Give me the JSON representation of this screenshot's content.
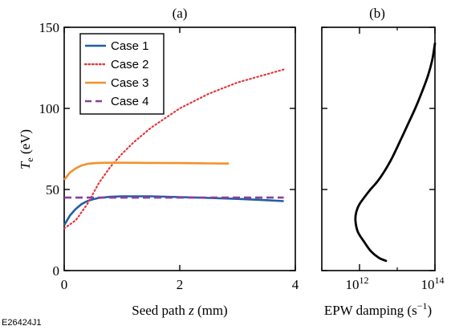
{
  "figure_id": "E26424J1",
  "chart_data": [
    {
      "panel": "(a)",
      "type": "line",
      "xlabel_prefix": "Seed path ",
      "xlabel_var": "z",
      "xlabel_suffix": " (mm)",
      "ylabel_var": "T",
      "ylabel_sub": "e",
      "ylabel_suffix": " (eV)",
      "xlim": [
        0,
        4
      ],
      "ylim": [
        0,
        150
      ],
      "xticks": [
        0,
        2,
        4
      ],
      "yticks": [
        0,
        50,
        100,
        150
      ],
      "grid": false,
      "legend_position": "top-left",
      "series": [
        {
          "name": "Case 1",
          "color": "#1f5fa8",
          "dash": "solid",
          "x": [
            0.0,
            0.1,
            0.2,
            0.3,
            0.4,
            0.5,
            0.6,
            0.8,
            1.0,
            1.5,
            2.0,
            2.5,
            3.0,
            3.5,
            3.8
          ],
          "y": [
            28,
            34,
            38,
            41,
            42.8,
            44,
            44.8,
            45.5,
            45.8,
            45.8,
            45.3,
            44.8,
            44.2,
            43.4,
            42.8
          ]
        },
        {
          "name": "Case 2",
          "color": "#e03a3e",
          "dash": "dotted",
          "x": [
            0.0,
            0.2,
            0.4,
            0.6,
            0.8,
            1.0,
            1.2,
            1.5,
            2.0,
            2.5,
            3.0,
            3.5,
            3.8
          ],
          "y": [
            26,
            31,
            41,
            54,
            64,
            72,
            79,
            88,
            100,
            109,
            116,
            121,
            124
          ]
        },
        {
          "name": "Case 3",
          "color": "#f0922b",
          "dash": "solid",
          "x": [
            0.0,
            0.1,
            0.2,
            0.3,
            0.4,
            0.5,
            0.6,
            0.8,
            1.0,
            1.5,
            2.0,
            2.5,
            2.85
          ],
          "y": [
            56,
            60.5,
            63,
            64.8,
            65.8,
            66.2,
            66.4,
            66.5,
            66.5,
            66.4,
            66.3,
            66.1,
            66.0
          ]
        },
        {
          "name": "Case 4",
          "color": "#8b3f96",
          "dash": "dashed",
          "x": [
            0.0,
            3.8
          ],
          "y": [
            45,
            45
          ]
        }
      ]
    },
    {
      "panel": "(b)",
      "type": "line",
      "xlabel": "EPW damping (s−1)",
      "xlabel_prefix": "EPW damping (s",
      "xlabel_sup": "−1",
      "xlabel_suffix": ")",
      "xscale": "log",
      "xlim": [
        100000000000.0,
        100000000000000.0
      ],
      "ylim": [
        0,
        150
      ],
      "xticks": [
        1000000000000.0,
        100000000000000.0
      ],
      "xtick_base": "10",
      "xtick_exps": [
        "12",
        "14"
      ],
      "minor_xticks": [
        100000000000.0,
        10000000000000.0
      ],
      "yticks": [
        0,
        50,
        100,
        150
      ],
      "grid": false,
      "series": [
        {
          "color": "#000000",
          "dash": "solid",
          "x": [
            100000000000000.0,
            85000000000000.0,
            65000000000000.0,
            45000000000000.0,
            30000000000000.0,
            19000000000000.0,
            12000000000000.0,
            7500000000000.0,
            4800000000000.0,
            3000000000000.0,
            1800000000000.0,
            1000000000000.0,
            820000000000.0,
            780000000000.0,
            900000000000.0,
            1300000000000.0,
            2000000000000.0,
            3200000000000.0,
            5000000000000.0
          ],
          "y": [
            140,
            130,
            120,
            110,
            100,
            90,
            80,
            70,
            62,
            55,
            49,
            41,
            36,
            31,
            24,
            18,
            12,
            8,
            6
          ]
        }
      ]
    }
  ]
}
